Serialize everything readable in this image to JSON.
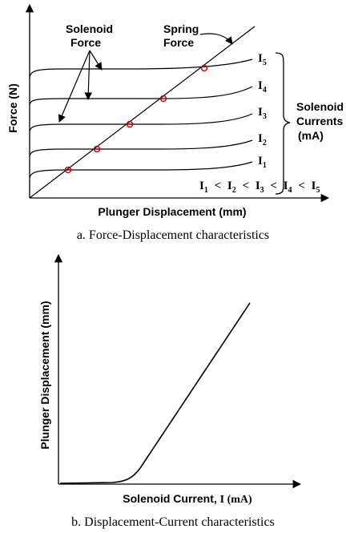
{
  "top": {
    "y_axis_label": "Force (N)",
    "x_axis_label": "Plunger Displacement (mm)",
    "solenoid_force_line1": "Solenoid",
    "solenoid_force_line2": "Force",
    "spring_force_line1": "Spring",
    "spring_force_line2": "Force",
    "currents_line1": "Solenoid",
    "currents_line2": "Currents",
    "currents_line3": "(mA)",
    "current_symbol": "I",
    "curve_subscripts": [
      "5",
      "4",
      "3",
      "2",
      "1"
    ],
    "inequality_sign": "<",
    "caption": "a. Force-Displacement characteristics"
  },
  "bottom": {
    "y_axis_label": "Plunger Displacement (mm)",
    "x_axis_label_sans": "Solenoid Current, ",
    "x_axis_label_serif": "I (mA)",
    "caption": "b. Displacement-Current characteristics"
  },
  "colors": {
    "ink": "#000000",
    "marker": "#cc0000"
  }
}
